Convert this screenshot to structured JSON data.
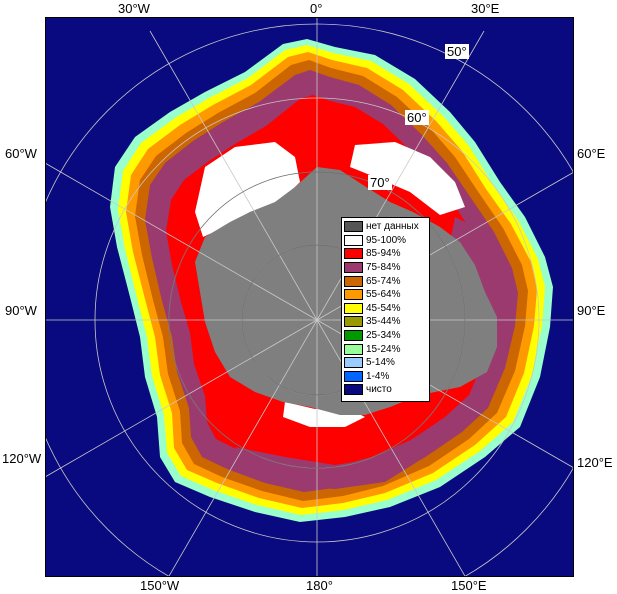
{
  "map": {
    "colors": {
      "ocean": "#0a0a80",
      "land": "#7f7f7f",
      "no_data": "#555555"
    },
    "longitude_labels": {
      "top": [
        "30°W",
        "0°",
        "30°E"
      ],
      "left": [
        "60°W",
        "90°W",
        "120°W"
      ],
      "right": [
        "60°E",
        "90°E",
        "120°E"
      ],
      "bottom": [
        "150°W",
        "180°",
        "150°E"
      ]
    },
    "latitude_labels": [
      "50°",
      "60°",
      "70°"
    ]
  },
  "legend": {
    "items": [
      {
        "label": "нет данных",
        "color": "#555555"
      },
      {
        "label": "95-100%",
        "color": "#ffffff"
      },
      {
        "label": "85-94%",
        "color": "#ff0000"
      },
      {
        "label": "75-84%",
        "color": "#9a3a6e"
      },
      {
        "label": "65-74%",
        "color": "#cc6600"
      },
      {
        "label": "55-64%",
        "color": "#ff9900"
      },
      {
        "label": "45-54%",
        "color": "#ffff00"
      },
      {
        "label": "35-44%",
        "color": "#999900"
      },
      {
        "label": "25-34%",
        "color": "#009900"
      },
      {
        "label": "15-24%",
        "color": "#99ff99"
      },
      {
        "label": "5-14%",
        "color": "#99ccff"
      },
      {
        "label": "1-4%",
        "color": "#0066ff"
      },
      {
        "label": "чисто",
        "color": "#0a0a80"
      }
    ]
  }
}
